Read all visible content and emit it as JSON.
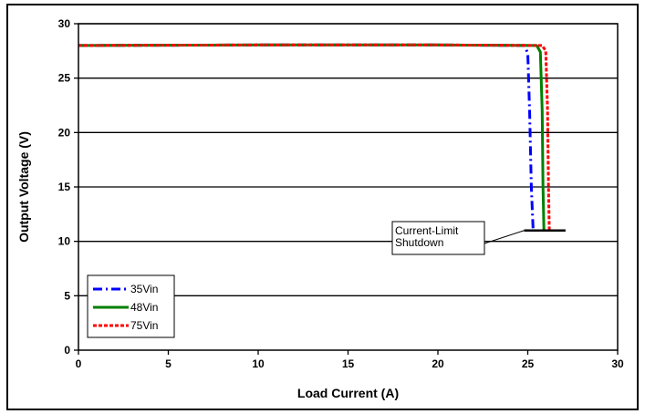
{
  "chart_data": {
    "type": "line",
    "title": "",
    "xlabel": "Load Current (A)",
    "ylabel": "Output Voltage (V)",
    "xlim": [
      0,
      30
    ],
    "ylim": [
      0,
      30
    ],
    "xticks": [
      "0",
      "5",
      "10",
      "15",
      "20",
      "25",
      "30"
    ],
    "yticks": [
      "0",
      "5",
      "10",
      "15",
      "20",
      "25",
      "30"
    ],
    "grid": "horizontal",
    "legend_position": "bottom-left",
    "series": [
      {
        "name": "35Vin",
        "color": "#0000ff",
        "dash": "dash-dot",
        "x": [
          0,
          10,
          20,
          24.8,
          25.0,
          25.1,
          25.2,
          25.3
        ],
        "y": [
          28.0,
          28.05,
          28.05,
          28.0,
          27.3,
          22.0,
          15.0,
          11.0
        ]
      },
      {
        "name": "48Vin",
        "color": "#008000",
        "dash": "solid",
        "x": [
          0,
          10,
          20,
          25.5,
          25.7,
          25.8,
          25.85,
          25.9
        ],
        "y": [
          28.0,
          28.05,
          28.05,
          28.0,
          27.4,
          22.0,
          15.0,
          11.0
        ]
      },
      {
        "name": "75Vin",
        "color": "#ff0000",
        "dash": "dashed",
        "x": [
          0,
          10,
          20,
          25.8,
          26.0,
          26.1,
          26.15,
          26.2
        ],
        "y": [
          28.0,
          28.05,
          28.05,
          28.0,
          27.5,
          22.0,
          15.0,
          11.0
        ]
      }
    ],
    "shutdown_line": {
      "x": [
        24.8,
        27.1
      ],
      "y": 11.0
    },
    "annotation": {
      "lines": [
        "Current-Limit",
        "Shutdown"
      ],
      "points_to": {
        "x": 24.8,
        "y": 11.0
      }
    }
  }
}
